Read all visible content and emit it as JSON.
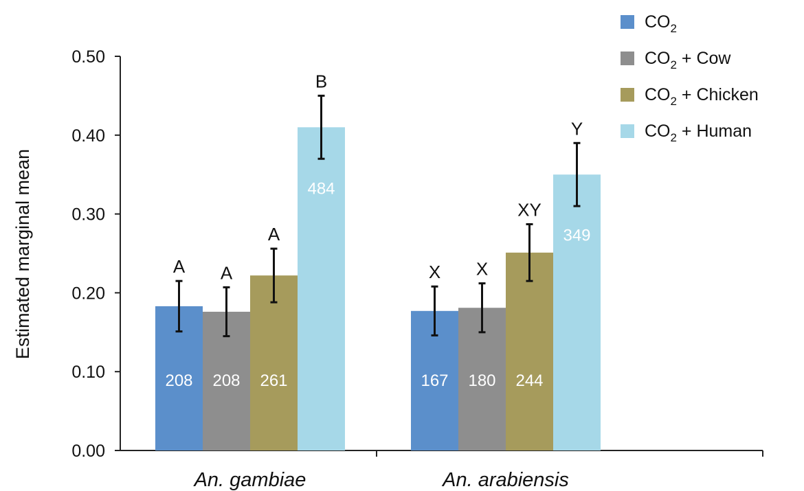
{
  "chart_data": {
    "type": "bar",
    "ylabel": "Estimated marginal mean",
    "ylim": [
      0,
      0.5
    ],
    "yticks": [
      "0.00",
      "0.10",
      "0.20",
      "0.30",
      "0.40",
      "0.50"
    ],
    "categories": [
      "An. gambiae",
      "An. arabiensis"
    ],
    "legend_position": "top-right",
    "series": [
      {
        "legend_main": "CO",
        "legend_sub": "2",
        "legend_suffix": "",
        "color": "#5B8FCB",
        "values": [
          0.183,
          0.177
        ],
        "error": [
          0.032,
          0.031
        ],
        "n_labels": [
          "208",
          "167"
        ],
        "sig_labels": [
          "A",
          "X"
        ]
      },
      {
        "legend_main": "CO",
        "legend_sub": "2",
        "legend_suffix": " + Cow",
        "color": "#8E8E8E",
        "values": [
          0.176,
          0.181
        ],
        "error": [
          0.031,
          0.031
        ],
        "n_labels": [
          "208",
          "180"
        ],
        "sig_labels": [
          "A",
          "X"
        ]
      },
      {
        "legend_main": "CO",
        "legend_sub": "2",
        "legend_suffix": " + Chicken",
        "color": "#A69B5C",
        "values": [
          0.222,
          0.251
        ],
        "error": [
          0.034,
          0.036
        ],
        "n_labels": [
          "261",
          "244"
        ],
        "sig_labels": [
          "A",
          "XY"
        ]
      },
      {
        "legend_main": "CO",
        "legend_sub": "2",
        "legend_suffix": " + Human",
        "color": "#A6D8E8",
        "values": [
          0.41,
          0.35
        ],
        "error": [
          0.04,
          0.04
        ],
        "n_labels": [
          "484",
          "349"
        ],
        "sig_labels": [
          "B",
          "Y"
        ]
      }
    ]
  }
}
